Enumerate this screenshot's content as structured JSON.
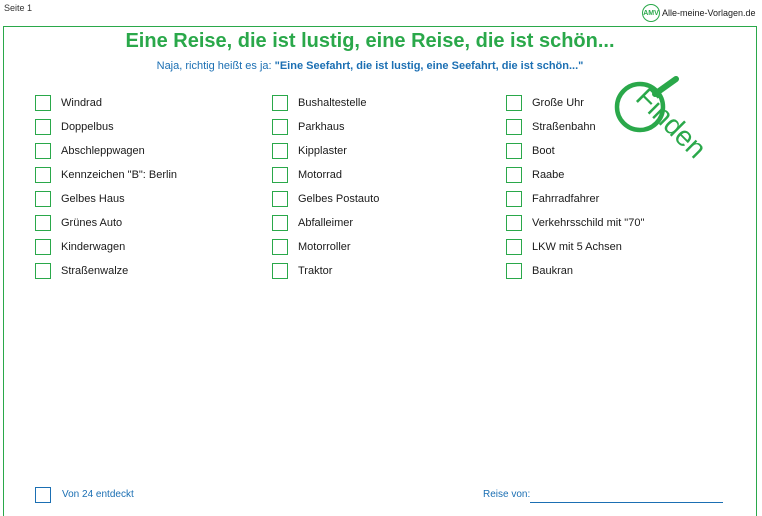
{
  "page_label": "Seite 1",
  "logo": {
    "mark": "AMV",
    "text": "Alle-meine-Vorlagen.de"
  },
  "title": "Eine Reise, die ist lustig, eine Reise, die ist schön...",
  "subtitle": {
    "prefix": "Naja, richtig heißt es ja: ",
    "quote": "\"Eine Seefahrt, die ist lustig, eine Seefahrt, die ist schön...\""
  },
  "columns": [
    [
      "Windrad",
      "Doppelbus",
      "Abschleppwagen",
      "Kennzeichen \"B\": Berlin",
      "Gelbes Haus",
      "Grünes Auto",
      "Kinderwagen",
      "Straßenwalze"
    ],
    [
      "Bushaltestelle",
      "Parkhaus",
      "Kipplaster",
      "Motorrad",
      "Gelbes Postauto",
      "Abfalleimer",
      "Motorroller",
      "Traktor"
    ],
    [
      "Große Uhr",
      "Straßenbahn",
      "Boot",
      "Raabe",
      "Fahrradfahrer",
      "Verkehrsschild mit \"70\"",
      "LKW mit 5 Achsen",
      "Baukran"
    ]
  ],
  "finden_word": "Finden",
  "footer": {
    "count_label": "Von 24 entdeckt",
    "trip_label": "Reise von:"
  },
  "colors": {
    "green": "#2aa84a",
    "blue": "#1b6fb3"
  }
}
